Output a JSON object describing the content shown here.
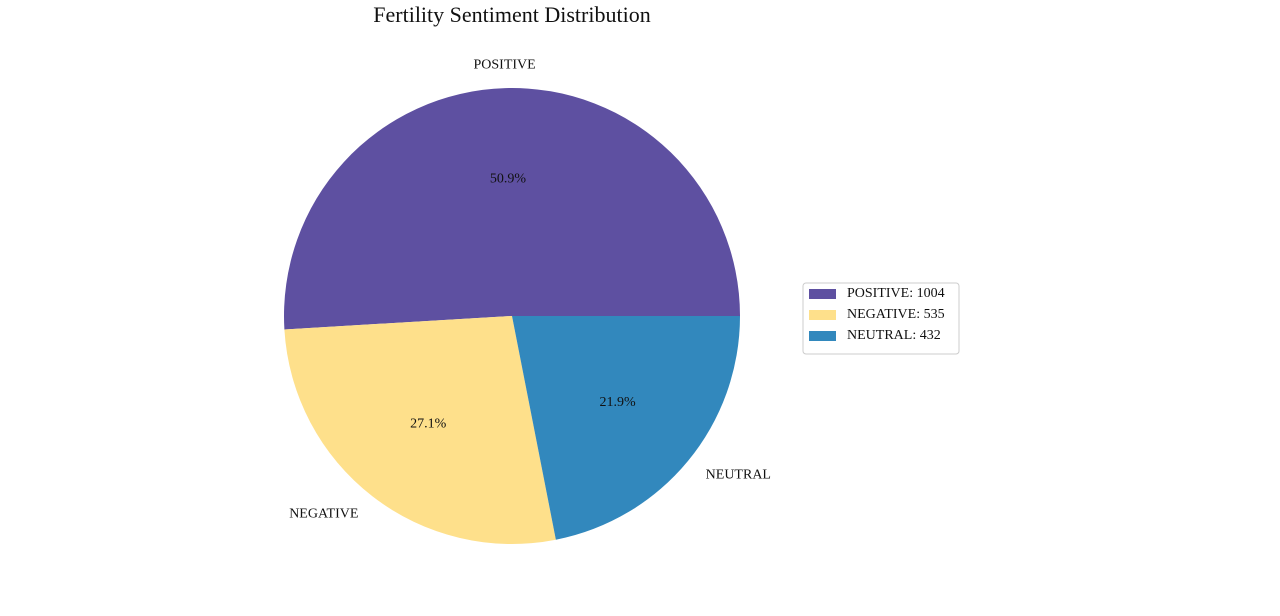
{
  "chart_data": {
    "type": "pie",
    "title": "Fertility Sentiment Distribution",
    "slices": [
      {
        "label": "POSITIVE",
        "value": 1004,
        "percent_label": "50.9%",
        "legend_label": "POSITIVE: 1004",
        "color": "#5e50a1"
      },
      {
        "label": "NEGATIVE",
        "value": 535,
        "percent_label": "27.1%",
        "legend_label": "NEGATIVE: 535",
        "color": "#fee08b"
      },
      {
        "label": "NEUTRAL",
        "value": 432,
        "percent_label": "21.9%",
        "legend_label": "NEUTRAL: 432",
        "color": "#3288bd"
      }
    ],
    "start_angle_deg": 0,
    "direction": "counterclockwise",
    "legend_position": "right"
  }
}
